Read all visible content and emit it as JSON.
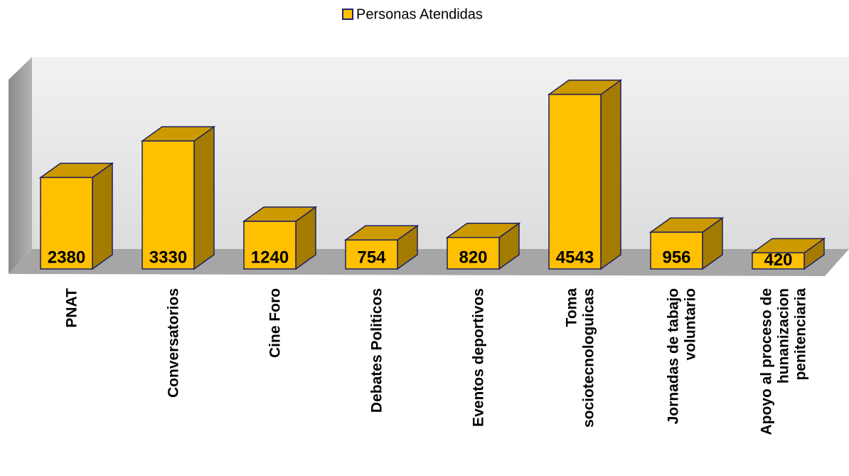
{
  "chart_data": {
    "type": "bar3d",
    "categories": [
      "PNAT",
      "Conversatorios",
      "Cine Foro",
      "Debates Politicos",
      "Eventos deportivos",
      "Toma sociotecnologuicas",
      "Jornadas de tabajo voluntario",
      "Apoyo al proceso de hunanizacion penitenciaria"
    ],
    "series": [
      {
        "name": "Personas Atendidas",
        "color": "#ffc000",
        "values": [
          2380,
          3330,
          1240,
          754,
          820,
          4543,
          956,
          420
        ]
      }
    ],
    "ylim": [
      0,
      5000
    ],
    "legend": "top"
  }
}
